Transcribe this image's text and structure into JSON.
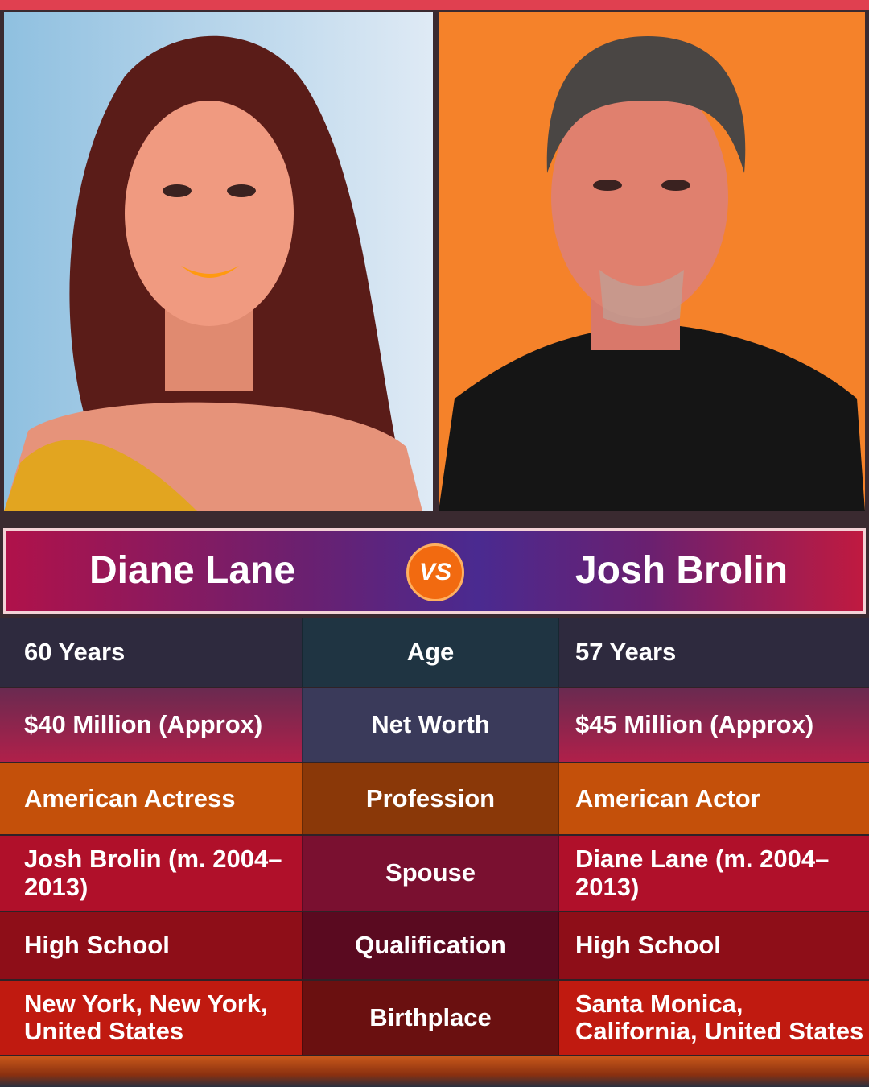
{
  "header": {
    "left_name": "Diane Lane",
    "vs": "VS",
    "right_name": "Josh Brolin"
  },
  "rows": [
    {
      "left": "60 Years",
      "label": "Age",
      "right": "57 Years"
    },
    {
      "left": "$40 Million (Approx)",
      "label": "Net Worth",
      "right": "$45 Million (Approx)"
    },
    {
      "left": "American Actress",
      "label": "Profession",
      "right": "American Actor"
    },
    {
      "left": "Josh Brolin (m. 2004–2013)",
      "label": "Spouse",
      "right": "Diane Lane (m. 2004–2013)"
    },
    {
      "left": "High School",
      "label": "Qualification",
      "right": "High School"
    },
    {
      "left": "New York, New York, United States",
      "label": "Birthplace",
      "right": "Santa Monica, California, United States"
    }
  ]
}
